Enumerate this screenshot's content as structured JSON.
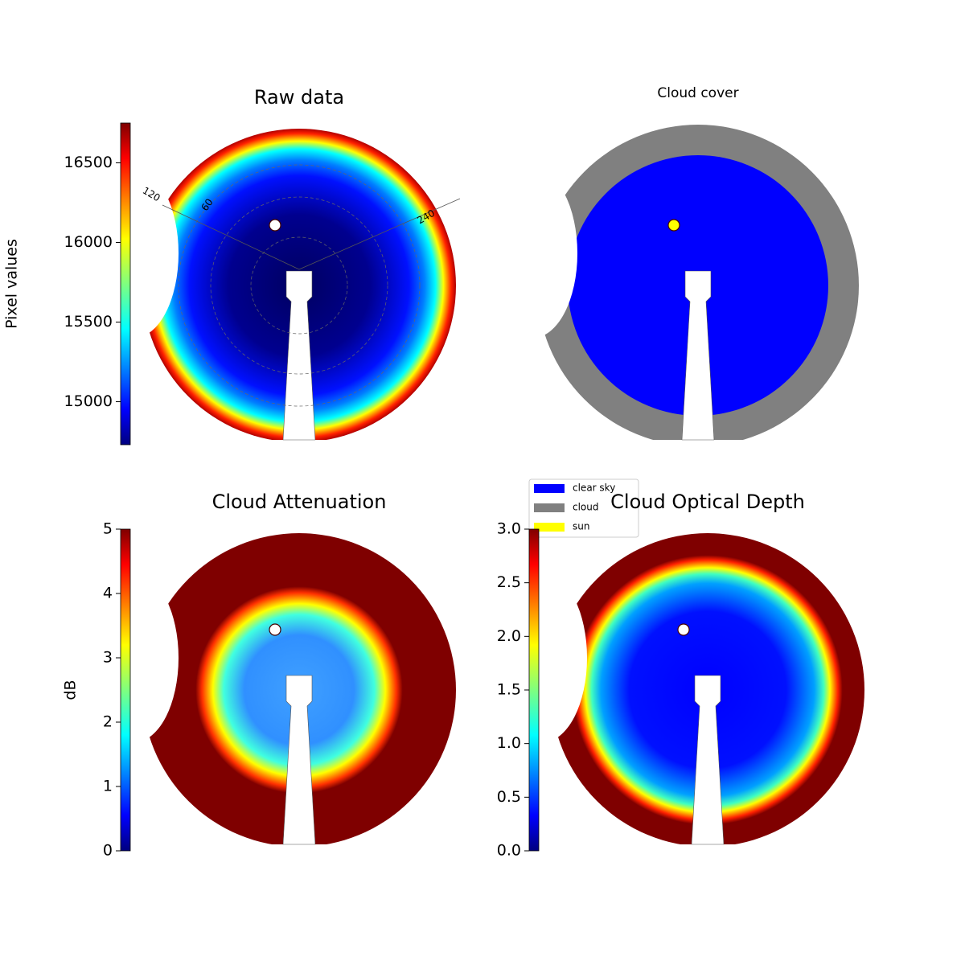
{
  "chart_data": [
    {
      "type": "image",
      "title": "Raw data",
      "colorbar_label": "Pixel values",
      "colormap": "jet",
      "ylim": [
        14730,
        16750
      ],
      "yticks": [
        15000,
        15500,
        16000,
        16500
      ],
      "annotations": [
        "120",
        "60",
        "240"
      ]
    },
    {
      "type": "image",
      "title": "Cloud cover",
      "series": [
        {
          "name": "clear sky",
          "color": "#0000ff"
        },
        {
          "name": "cloud",
          "color": "#808080"
        },
        {
          "name": "sun",
          "color": "#ffff00"
        }
      ]
    },
    {
      "type": "image",
      "title": "Cloud Attenuation",
      "colorbar_label": "dB",
      "colormap": "jet",
      "ylim": [
        0,
        5
      ],
      "yticks": [
        0,
        1,
        2,
        3,
        4,
        5
      ]
    },
    {
      "type": "image",
      "title": "Cloud Optical Depth",
      "colormap": "jet",
      "ylim": [
        0,
        3
      ],
      "yticks": [
        {
          "value": 0,
          "label": "0.0"
        },
        {
          "value": 0.5,
          "label": "0.5"
        },
        {
          "value": 1,
          "label": "1.0"
        },
        {
          "value": 1.5,
          "label": "1.5"
        },
        {
          "value": 2,
          "label": "2.0"
        },
        {
          "value": 2.5,
          "label": "2.5"
        },
        {
          "value": 3,
          "label": "3.0"
        }
      ]
    }
  ]
}
